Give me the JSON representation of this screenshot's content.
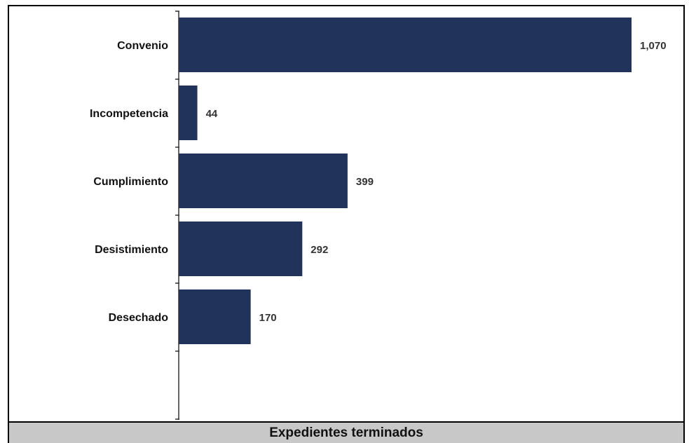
{
  "footer_title": "Expedientes terminados",
  "colors": {
    "bar": "#22335b",
    "axis": "#333333",
    "footer_bg": "#c8c8c8"
  },
  "chart_data": {
    "type": "bar",
    "orientation": "horizontal",
    "categories": [
      "Convenio",
      "Incompetencia",
      "Cumplimiento",
      "Desistimiento",
      "Desechado"
    ],
    "values": [
      1070,
      44,
      399,
      292,
      170
    ],
    "value_labels": [
      "1,070",
      "44",
      "399",
      "292",
      "170"
    ],
    "title": "Expedientes terminados",
    "xlabel": "",
    "ylabel": "",
    "xlim": [
      0,
      1070
    ],
    "grid": false,
    "legend": "none"
  }
}
